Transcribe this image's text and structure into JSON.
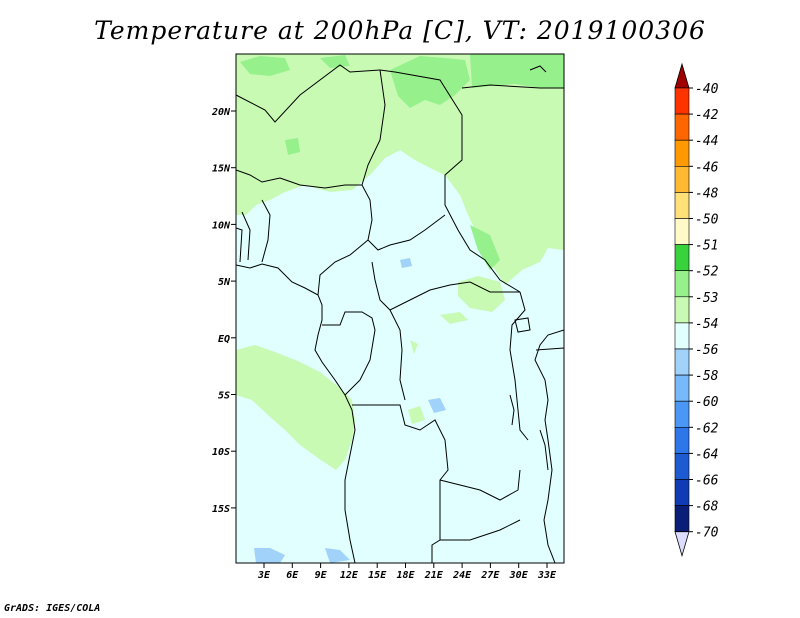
{
  "title": "Temperature at 200hPa [C], VT: 2019100306",
  "credit": "GrADS: IGES/COLA",
  "map": {
    "lat_labels": [
      "20N",
      "15N",
      "10N",
      "5N",
      "EQ",
      "5S",
      "10S",
      "15S"
    ],
    "lon_labels": [
      "3E",
      "6E",
      "9E",
      "12E",
      "15E",
      "18E",
      "21E",
      "24E",
      "27E",
      "30E",
      "33E"
    ],
    "background_color": "#e0fffe",
    "shade_colors": {
      "light_green": "#c8fab4",
      "green": "#96f08c",
      "light_blue": "#a0d2fa"
    }
  },
  "colorbar": {
    "labels": [
      "-40",
      "-42",
      "-44",
      "-46",
      "-48",
      "-50",
      "-51",
      "-52",
      "-53",
      "-54",
      "-56",
      "-58",
      "-60",
      "-62",
      "-64",
      "-66",
      "-68",
      "-70"
    ],
    "colors": [
      "#c80000",
      "#ff3300",
      "#ff6600",
      "#ff9900",
      "#ffb932",
      "#ffe178",
      "#fffac8",
      "#37d23c",
      "#96f08c",
      "#c8fab4",
      "#e0fffe",
      "#a0d2fa",
      "#78b9fa",
      "#4b97f5",
      "#2d77eb",
      "#1e5ad2",
      "#0f3cb4",
      "#0a1e78"
    ],
    "top_color": "#a00000",
    "bottom_color": "#dcdcff"
  }
}
